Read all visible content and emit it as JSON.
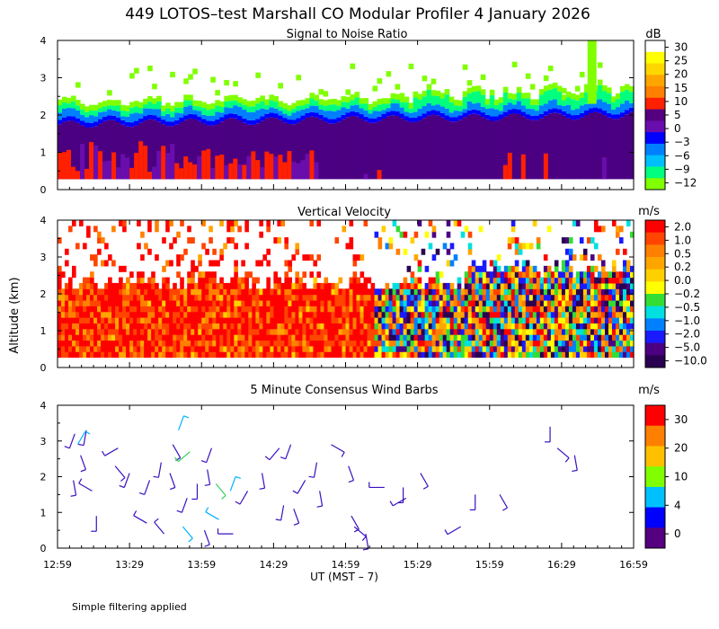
{
  "title": "449 LOTOS–test Marshall CO Modular Profiler  4 January 2026",
  "footnote": "Simple filtering applied",
  "y_axis_label": "Altitude (km)",
  "x_axis_label": "UT  (MST – 7)",
  "chart_data": [
    {
      "type": "heatmap",
      "title": "Signal to Noise Ratio",
      "xlabel": "UT  (MST – 7)",
      "ylabel": "Altitude (km)",
      "x_ticks": [
        "12:59",
        "13:29",
        "13:59",
        "14:29",
        "14:59",
        "15:29",
        "15:59",
        "16:29",
        "16:59"
      ],
      "y_ticks": [
        "0",
        "1",
        "2",
        "3",
        "4"
      ],
      "xlim_hours_ut": [
        12.98,
        16.98
      ],
      "ylim_km": [
        0,
        4
      ],
      "colorbar": {
        "unit": "dB",
        "labels": [
          "30",
          "25",
          "20",
          "15",
          "10",
          "5",
          "0",
          "−3",
          "−6",
          "−9",
          "−12"
        ],
        "colors": [
          "#ffffff",
          "#ffff00",
          "#ffd700",
          "#ffa500",
          "#ff7f00",
          "#ff2000",
          "#55007f",
          "#6a0dad",
          "#0000ff",
          "#0080ff",
          "#00bfff",
          "#00ff7f",
          "#80ff00"
        ]
      },
      "description_values": {
        "strong_signal_top_km": 1.8,
        "noisy_echo_max_km": 4.0,
        "late_afternoon_peak_km": 4.0
      }
    },
    {
      "type": "heatmap",
      "title": "Vertical Velocity",
      "xlabel": "UT  (MST – 7)",
      "ylabel": "Altitude (km)",
      "x_ticks": [
        "12:59",
        "13:29",
        "13:59",
        "14:29",
        "14:59",
        "15:29",
        "15:59",
        "16:29",
        "16:59"
      ],
      "y_ticks": [
        "0",
        "1",
        "2",
        "3",
        "4"
      ],
      "xlim_hours_ut": [
        12.98,
        16.98
      ],
      "ylim_km": [
        0,
        4
      ],
      "colorbar": {
        "unit": "m/s",
        "labels": [
          "2.0",
          "1.0",
          "0.5",
          "0.2",
          "0.0",
          "−0.2",
          "−0.5",
          "−1.0",
          "−2.0",
          "−5.0",
          "−10.0"
        ],
        "colors": [
          "#ff0000",
          "#ff4500",
          "#ff8000",
          "#ffa500",
          "#ffd000",
          "#ffff00",
          "#33dd33",
          "#00e0e0",
          "#0080ff",
          "#1a1aff",
          "#4b0082",
          "#2a0050"
        ]
      }
    },
    {
      "type": "scatter",
      "title": "5 Minute Consensus Wind Barbs",
      "xlabel": "UT  (MST – 7)",
      "ylabel": "Altitude (km)",
      "x_ticks": [
        "12:59",
        "13:29",
        "13:59",
        "14:29",
        "14:59",
        "15:29",
        "15:59",
        "16:29",
        "16:59"
      ],
      "y_ticks": [
        "0",
        "1",
        "2",
        "3",
        "4"
      ],
      "xlim_hours_ut": [
        12.98,
        16.98
      ],
      "ylim_km": [
        0,
        4
      ],
      "colorbar": {
        "unit": "m/s",
        "labels": [
          "30",
          "20",
          "10",
          "4",
          "0"
        ],
        "colors": [
          "#ff0000",
          "#ff8000",
          "#ffc000",
          "#80ff00",
          "#00c0ff",
          "#0000ff",
          "#55007f"
        ]
      },
      "barbs": [
        {
          "t": 13.1,
          "z": 3.2,
          "dir": 200,
          "c": "#3a10c0"
        },
        {
          "t": 13.18,
          "z": 3.3,
          "dir": 190,
          "c": "#3a10c0"
        },
        {
          "t": 13.14,
          "z": 2.6,
          "dir": 160,
          "c": "#3a10c0"
        },
        {
          "t": 13.09,
          "z": 1.9,
          "dir": 170,
          "c": "#3a10c0"
        },
        {
          "t": 13.22,
          "z": 1.6,
          "dir": 300,
          "c": "#3a10c0"
        },
        {
          "t": 13.25,
          "z": 0.9,
          "dir": 180,
          "c": "#3a10c0"
        },
        {
          "t": 13.12,
          "z": 2.9,
          "dir": 30,
          "c": "#00b0ff"
        },
        {
          "t": 13.4,
          "z": 2.8,
          "dir": 240,
          "c": "#3a10c0"
        },
        {
          "t": 13.38,
          "z": 2.3,
          "dir": 140,
          "c": "#3a10c0"
        },
        {
          "t": 13.48,
          "z": 2.1,
          "dir": 200,
          "c": "#3a10c0"
        },
        {
          "t": 13.6,
          "z": 0.7,
          "dir": 300,
          "c": "#3a10c0"
        },
        {
          "t": 13.72,
          "z": 0.4,
          "dir": 320,
          "c": "#3a10c0"
        },
        {
          "t": 13.62,
          "z": 1.9,
          "dir": 200,
          "c": "#3a10c0"
        },
        {
          "t": 13.7,
          "z": 2.4,
          "dir": 190,
          "c": "#3a10c0"
        },
        {
          "t": 13.78,
          "z": 2.9,
          "dir": 150,
          "c": "#3a10c0"
        },
        {
          "t": 13.82,
          "z": 3.3,
          "dir": 20,
          "c": "#00b0ff"
        },
        {
          "t": 13.76,
          "z": 2.1,
          "dir": 160,
          "c": "#3a10c0"
        },
        {
          "t": 13.9,
          "z": 2.7,
          "dir": 230,
          "c": "#30d060"
        },
        {
          "t": 13.95,
          "z": 1.8,
          "dir": 180,
          "c": "#3a10c0"
        },
        {
          "t": 13.88,
          "z": 1.4,
          "dir": 200,
          "c": "#3a10c0"
        },
        {
          "t": 13.85,
          "z": 0.6,
          "dir": 140,
          "c": "#00b0ff"
        },
        {
          "t": 14.0,
          "z": 0.5,
          "dir": 160,
          "c": "#3a10c0"
        },
        {
          "t": 14.05,
          "z": 2.8,
          "dir": 200,
          "c": "#3a10c0"
        },
        {
          "t": 14.02,
          "z": 2.2,
          "dir": 170,
          "c": "#3a10c0"
        },
        {
          "t": 14.08,
          "z": 1.8,
          "dir": 140,
          "c": "#30d060"
        },
        {
          "t": 14.1,
          "z": 0.8,
          "dir": 300,
          "c": "#00b0ff"
        },
        {
          "t": 14.18,
          "z": 1.6,
          "dir": 20,
          "c": "#00b0ff"
        },
        {
          "t": 14.2,
          "z": 0.4,
          "dir": 270,
          "c": "#3a10c0"
        },
        {
          "t": 14.3,
          "z": 1.6,
          "dir": 210,
          "c": "#3a10c0"
        },
        {
          "t": 14.4,
          "z": 2.1,
          "dir": 170,
          "c": "#3a10c0"
        },
        {
          "t": 14.52,
          "z": 2.8,
          "dir": 220,
          "c": "#3a10c0"
        },
        {
          "t": 14.6,
          "z": 2.9,
          "dir": 200,
          "c": "#3a10c0"
        },
        {
          "t": 14.55,
          "z": 1.2,
          "dir": 190,
          "c": "#3a10c0"
        },
        {
          "t": 14.62,
          "z": 1.1,
          "dir": 160,
          "c": "#3a10c0"
        },
        {
          "t": 14.7,
          "z": 1.9,
          "dir": 210,
          "c": "#3a10c0"
        },
        {
          "t": 14.78,
          "z": 2.4,
          "dir": 190,
          "c": "#3a10c0"
        },
        {
          "t": 14.8,
          "z": 1.6,
          "dir": 170,
          "c": "#3a10c0"
        },
        {
          "t": 14.88,
          "z": 2.9,
          "dir": 120,
          "c": "#3a10c0"
        },
        {
          "t": 15.0,
          "z": 2.3,
          "dir": 160,
          "c": "#3a10c0"
        },
        {
          "t": 15.02,
          "z": 0.9,
          "dir": 150,
          "c": "#3a10c0"
        },
        {
          "t": 15.04,
          "z": 0.6,
          "dir": 130,
          "c": "#3a10c0"
        },
        {
          "t": 15.12,
          "z": 0.4,
          "dir": 170,
          "c": "#3a10c0"
        },
        {
          "t": 15.25,
          "z": 1.7,
          "dir": 270,
          "c": "#3a10c0"
        },
        {
          "t": 15.4,
          "z": 1.4,
          "dir": 240,
          "c": "#3a10c0"
        },
        {
          "t": 15.38,
          "z": 1.7,
          "dir": 180,
          "c": "#3a10c0"
        },
        {
          "t": 15.5,
          "z": 2.1,
          "dir": 150,
          "c": "#3a10c0"
        },
        {
          "t": 15.78,
          "z": 0.6,
          "dir": 240,
          "c": "#3a10c0"
        },
        {
          "t": 15.88,
          "z": 1.5,
          "dir": 180,
          "c": "#3a10c0"
        },
        {
          "t": 16.05,
          "z": 1.5,
          "dir": 150,
          "c": "#3a10c0"
        },
        {
          "t": 16.4,
          "z": 3.4,
          "dir": 180,
          "c": "#3a10c0"
        },
        {
          "t": 16.45,
          "z": 2.8,
          "dir": 130,
          "c": "#3a10c0"
        },
        {
          "t": 16.57,
          "z": 2.6,
          "dir": 170,
          "c": "#3a10c0"
        }
      ]
    }
  ]
}
